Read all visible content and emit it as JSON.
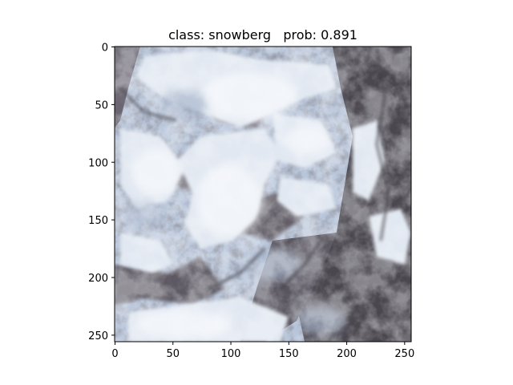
{
  "figure": {
    "title": "class: snowberg   prob: 0.891",
    "image_subject": "satellite view of snow-covered mountain terrain",
    "x_ticks": [
      "0",
      "50",
      "100",
      "150",
      "200",
      "250"
    ],
    "y_ticks": [
      "0",
      "50",
      "100",
      "150",
      "200",
      "250"
    ],
    "image_extent": [
      0,
      256
    ],
    "colors": {
      "snow": "#dfe6ef",
      "snow_shadow": "#a9b8cf",
      "rock_dark": "#45424a",
      "rock_mid": "#6b6670",
      "frame": "#000000"
    }
  }
}
